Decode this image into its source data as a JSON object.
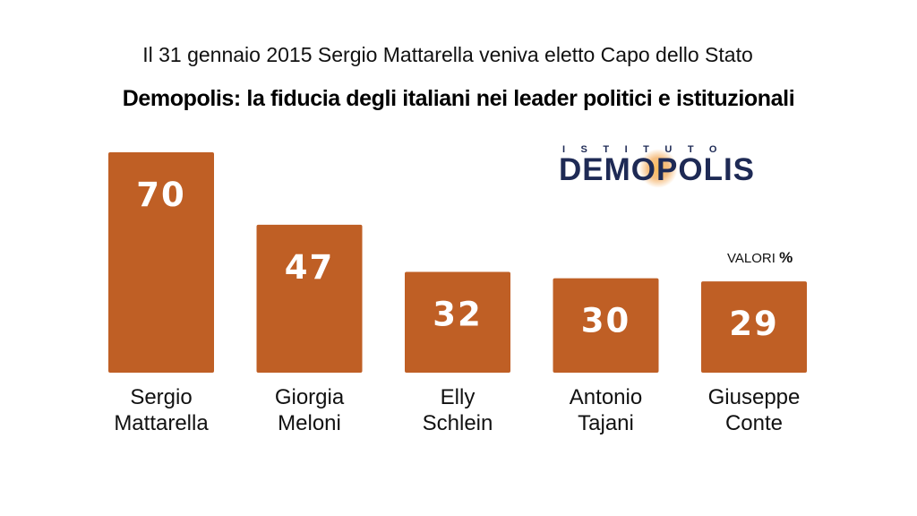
{
  "header": {
    "subtitle": "Il 31 gennaio 2015 Sergio Mattarella veniva eletto Capo dello Stato",
    "title": "Demopolis: la fiducia degli italiani nei leader politici e istituzionali"
  },
  "logo": {
    "top_text": "ISTITUTO",
    "main_text": "DEMOPOLIS"
  },
  "unit_note": {
    "label": "VALORI",
    "symbol": "%"
  },
  "colors": {
    "bar": "#BF5F25",
    "bar_text": "#FFFFFF",
    "logo": "#1E2A55"
  },
  "chart_data": {
    "type": "bar",
    "title": "Demopolis: la fiducia degli italiani nei leader politici e istituzionali",
    "subtitle": "Il 31 gennaio 2015 Sergio Mattarella veniva eletto Capo dello Stato",
    "categories": [
      [
        "Sergio",
        "Mattarella"
      ],
      [
        "Giorgia",
        "Meloni"
      ],
      [
        "Elly",
        "Schlein"
      ],
      [
        "Antonio",
        "Tajani"
      ],
      [
        "Giuseppe",
        "Conte"
      ]
    ],
    "values": [
      70,
      47,
      32,
      30,
      29
    ],
    "xlabel": "",
    "ylabel": "",
    "ylim": [
      0,
      70
    ],
    "grid": false,
    "legend": "none"
  }
}
